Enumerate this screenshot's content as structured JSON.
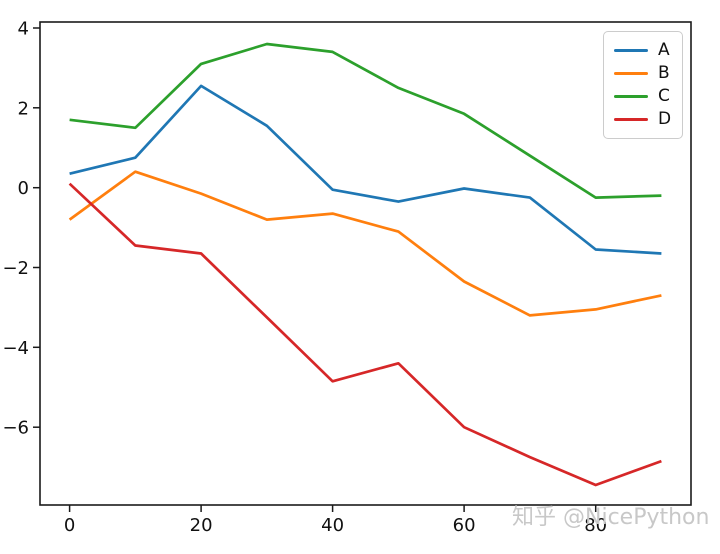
{
  "figure": {
    "background": "#ffffff",
    "watermark": "知乎 @NicePython",
    "watermark_color": "#c8c8c8"
  },
  "chart_data": {
    "type": "line",
    "title": "",
    "xlabel": "",
    "ylabel": "",
    "grid": false,
    "legend_position": "upper right",
    "x": [
      0,
      10,
      20,
      30,
      40,
      50,
      60,
      70,
      80,
      90
    ],
    "series": [
      {
        "name": "A",
        "color": "#1f77b4",
        "values": [
          0.35,
          0.75,
          2.55,
          1.55,
          -0.05,
          -0.35,
          -0.02,
          -0.25,
          -1.55,
          -1.65
        ]
      },
      {
        "name": "B",
        "color": "#ff7f0e",
        "values": [
          -0.8,
          0.4,
          -0.15,
          -0.8,
          -0.65,
          -1.1,
          -2.35,
          -3.2,
          -3.05,
          -2.7
        ]
      },
      {
        "name": "C",
        "color": "#2ca02c",
        "values": [
          1.7,
          1.5,
          3.1,
          3.6,
          3.4,
          2.5,
          1.85,
          0.8,
          -0.25,
          -0.2
        ]
      },
      {
        "name": "D",
        "color": "#d62728",
        "values": [
          0.1,
          -1.45,
          -1.65,
          -3.25,
          -4.85,
          -4.4,
          -6.0,
          -6.75,
          -7.45,
          -6.85
        ]
      }
    ],
    "x_ticks": [
      0,
      20,
      40,
      60,
      80
    ],
    "y_ticks": [
      4,
      2,
      0,
      -2,
      -4,
      -6
    ],
    "xlim": [
      -4.5,
      94.5
    ],
    "ylim": [
      -7.95,
      4.15
    ]
  }
}
